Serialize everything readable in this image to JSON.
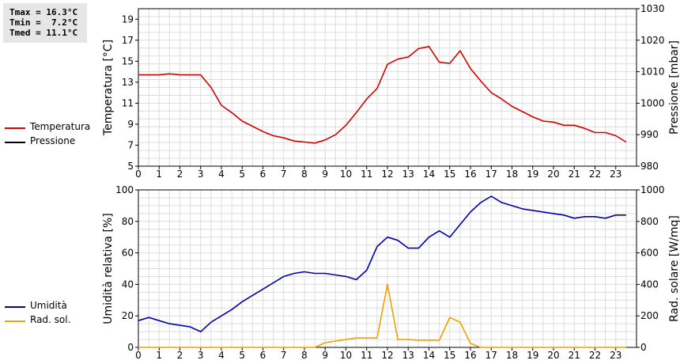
{
  "stats": {
    "tmax": "Tmax = 16.3°C",
    "tmin": "Tmin =  7.2°C",
    "tmed": "Tmed = 11.1°C"
  },
  "legend_top": [
    {
      "label": "Temperatura",
      "color": "#d40000"
    },
    {
      "label": "Pressione",
      "color": "#000000"
    }
  ],
  "legend_bottom": [
    {
      "label": "Umidità",
      "color": "#0000b0"
    },
    {
      "label": "Rad. sol.",
      "color": "#f0a000"
    }
  ],
  "chart_data": [
    {
      "type": "line",
      "x_ticks": [
        "0",
        "1",
        "2",
        "3",
        "4",
        "5",
        "6",
        "7",
        "8",
        "9",
        "10",
        "11",
        "12",
        "13",
        "14",
        "15",
        "16",
        "17",
        "18",
        "19",
        "20",
        "21",
        "22",
        "23"
      ],
      "xlim": [
        0,
        24
      ],
      "ylabel": "Temperatura [°C]",
      "y_ticks": [
        "5",
        "7",
        "9",
        "11",
        "13",
        "15",
        "17",
        "19"
      ],
      "ylim": [
        5,
        20
      ],
      "y2label": "Pressione [mbar]",
      "y2_ticks": [
        "980",
        "990",
        "1000",
        "1010",
        "1020",
        "1030"
      ],
      "y2lim": [
        980,
        1030
      ],
      "grid": true,
      "series": [
        {
          "name": "Temperatura",
          "axis": "left",
          "color": "#d40000",
          "x": [
            0,
            0.5,
            1,
            1.5,
            2,
            2.5,
            3,
            3.5,
            4,
            4.5,
            5,
            5.5,
            6,
            6.5,
            7,
            7.5,
            8,
            8.5,
            9,
            9.5,
            10,
            10.5,
            11,
            11.5,
            12,
            12.5,
            13,
            13.5,
            14,
            14.5,
            15,
            15.5,
            16,
            16.5,
            17,
            17.5,
            18,
            18.5,
            19,
            19.5,
            20,
            20.5,
            21,
            21.5,
            22,
            22.5,
            23,
            23.5
          ],
          "y": [
            13.7,
            13.7,
            13.7,
            13.8,
            13.7,
            13.7,
            13.7,
            12.5,
            10.8,
            10.1,
            9.3,
            8.8,
            8.3,
            7.9,
            7.7,
            7.4,
            7.3,
            7.2,
            7.5,
            8.0,
            8.9,
            10.1,
            11.4,
            12.4,
            14.7,
            15.2,
            15.4,
            16.2,
            16.4,
            14.9,
            14.8,
            16.0,
            14.3,
            13.1,
            12.0,
            11.4,
            10.7,
            10.2,
            9.7,
            9.3,
            9.2,
            8.9,
            8.9,
            8.6,
            8.2,
            8.2,
            7.9,
            7.3
          ]
        },
        {
          "name": "Pressione",
          "axis": "right",
          "color": "#000000",
          "x": [],
          "y": []
        }
      ]
    },
    {
      "type": "line",
      "x_ticks": [
        "0",
        "1",
        "2",
        "3",
        "4",
        "5",
        "6",
        "7",
        "8",
        "9",
        "10",
        "11",
        "12",
        "13",
        "14",
        "15",
        "16",
        "17",
        "18",
        "19",
        "20",
        "21",
        "22",
        "23"
      ],
      "xlim": [
        0,
        24
      ],
      "ylabel": "Umidità relativa [%]",
      "y_ticks": [
        "0",
        "20",
        "40",
        "60",
        "80",
        "100"
      ],
      "ylim": [
        0,
        100
      ],
      "y2label": "Rad. solare [W/mq]",
      "y2_ticks": [
        "0",
        "200",
        "400",
        "600",
        "800",
        "1000"
      ],
      "y2lim": [
        0,
        1000
      ],
      "grid": true,
      "series": [
        {
          "name": "Umidità",
          "axis": "left",
          "color": "#0000b0",
          "x": [
            0,
            0.5,
            1,
            1.5,
            2,
            2.5,
            3,
            3.5,
            4,
            4.5,
            5,
            5.5,
            6,
            6.5,
            7,
            7.5,
            8,
            8.5,
            9,
            9.5,
            10,
            10.5,
            11,
            11.5,
            12,
            12.5,
            13,
            13.5,
            14,
            14.5,
            15,
            15.5,
            16,
            16.5,
            17,
            17.5,
            18,
            18.5,
            19,
            19.5,
            20,
            20.5,
            21,
            21.5,
            22,
            22.5,
            23,
            23.5
          ],
          "y": [
            17,
            19,
            17,
            15,
            14,
            13,
            10,
            16,
            20,
            24,
            29,
            33,
            37,
            41,
            45,
            47,
            48,
            47,
            47,
            46,
            45,
            43,
            49,
            64,
            70,
            68,
            63,
            63,
            70,
            74,
            70,
            78,
            86,
            92,
            96,
            92,
            90,
            88,
            87,
            86,
            85,
            84,
            82,
            83,
            83,
            82,
            84,
            84
          ]
        },
        {
          "name": "Rad. sol.",
          "axis": "right",
          "color": "#f0a000",
          "x": [
            0,
            0.5,
            1,
            1.5,
            2,
            2.5,
            3,
            3.5,
            4,
            4.5,
            5,
            5.5,
            6,
            6.5,
            7,
            7.5,
            8,
            8.5,
            9,
            9.5,
            10,
            10.5,
            11,
            11.5,
            12,
            12.5,
            13,
            13.5,
            14,
            14.5,
            15,
            15.5,
            16,
            16.5,
            17,
            17.5,
            18,
            18.5,
            19,
            19.5,
            20,
            20.5,
            21,
            21.5,
            22,
            22.5,
            23,
            23.5
          ],
          "y": [
            0,
            0,
            0,
            0,
            0,
            0,
            0,
            0,
            0,
            0,
            0,
            0,
            0,
            0,
            0,
            0,
            0,
            0,
            30,
            40,
            50,
            60,
            60,
            60,
            400,
            50,
            50,
            45,
            45,
            45,
            190,
            160,
            25,
            0,
            0,
            0,
            0,
            0,
            0,
            0,
            0,
            0,
            0,
            0,
            0,
            0,
            0,
            0
          ]
        }
      ]
    }
  ]
}
